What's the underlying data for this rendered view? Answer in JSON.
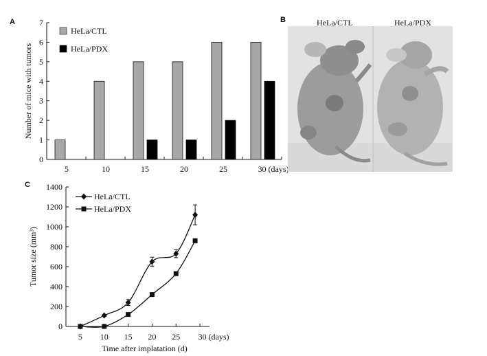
{
  "panels": {
    "a": {
      "letter": "A"
    },
    "b": {
      "letter": "B",
      "label_left": "HeLa/CTL",
      "label_right": "HeLa/PDX"
    },
    "c": {
      "letter": "C"
    }
  },
  "chart_data": [
    {
      "type": "bar",
      "ylabel": "Number of mice with tumors",
      "xlabel": "",
      "categories": [
        "5",
        "10",
        "15",
        "20",
        "25",
        "30"
      ],
      "x_unit_label": "(days)",
      "ylim": [
        0,
        7
      ],
      "yticks": [
        0,
        1,
        2,
        3,
        4,
        5,
        6,
        7
      ],
      "legend_position": "top-left",
      "series": [
        {
          "name": "HeLa/CTL",
          "values": [
            1,
            4,
            5,
            5,
            6,
            6
          ],
          "color": "#a8a8a8"
        },
        {
          "name": "HeLa/PDX",
          "values": [
            0,
            0,
            1,
            1,
            2,
            4
          ],
          "color": "#000000"
        }
      ]
    },
    {
      "type": "line",
      "ylabel": "Tumor size (mm³)",
      "xlabel": "Time after implatation (d)",
      "x_unit_label": "(days)",
      "xticks": [
        5,
        10,
        15,
        20,
        25,
        30
      ],
      "yticks": [
        0,
        200,
        400,
        600,
        800,
        1000,
        1200,
        1400
      ],
      "xlim": [
        2,
        32
      ],
      "ylim": [
        0,
        1400
      ],
      "legend_position": "top-left",
      "series": [
        {
          "name": "HeLa/CTL",
          "marker": "diamond",
          "x": [
            5,
            10,
            15,
            20,
            25,
            29
          ],
          "y": [
            0,
            110,
            240,
            650,
            730,
            1120
          ],
          "err": [
            0,
            10,
            30,
            45,
            40,
            100
          ]
        },
        {
          "name": "HeLa/PDX",
          "marker": "square",
          "x": [
            5,
            10,
            15,
            20,
            25,
            29
          ],
          "y": [
            0,
            0,
            120,
            320,
            530,
            860
          ],
          "err": [
            0,
            0,
            8,
            15,
            10,
            20
          ]
        }
      ]
    }
  ]
}
